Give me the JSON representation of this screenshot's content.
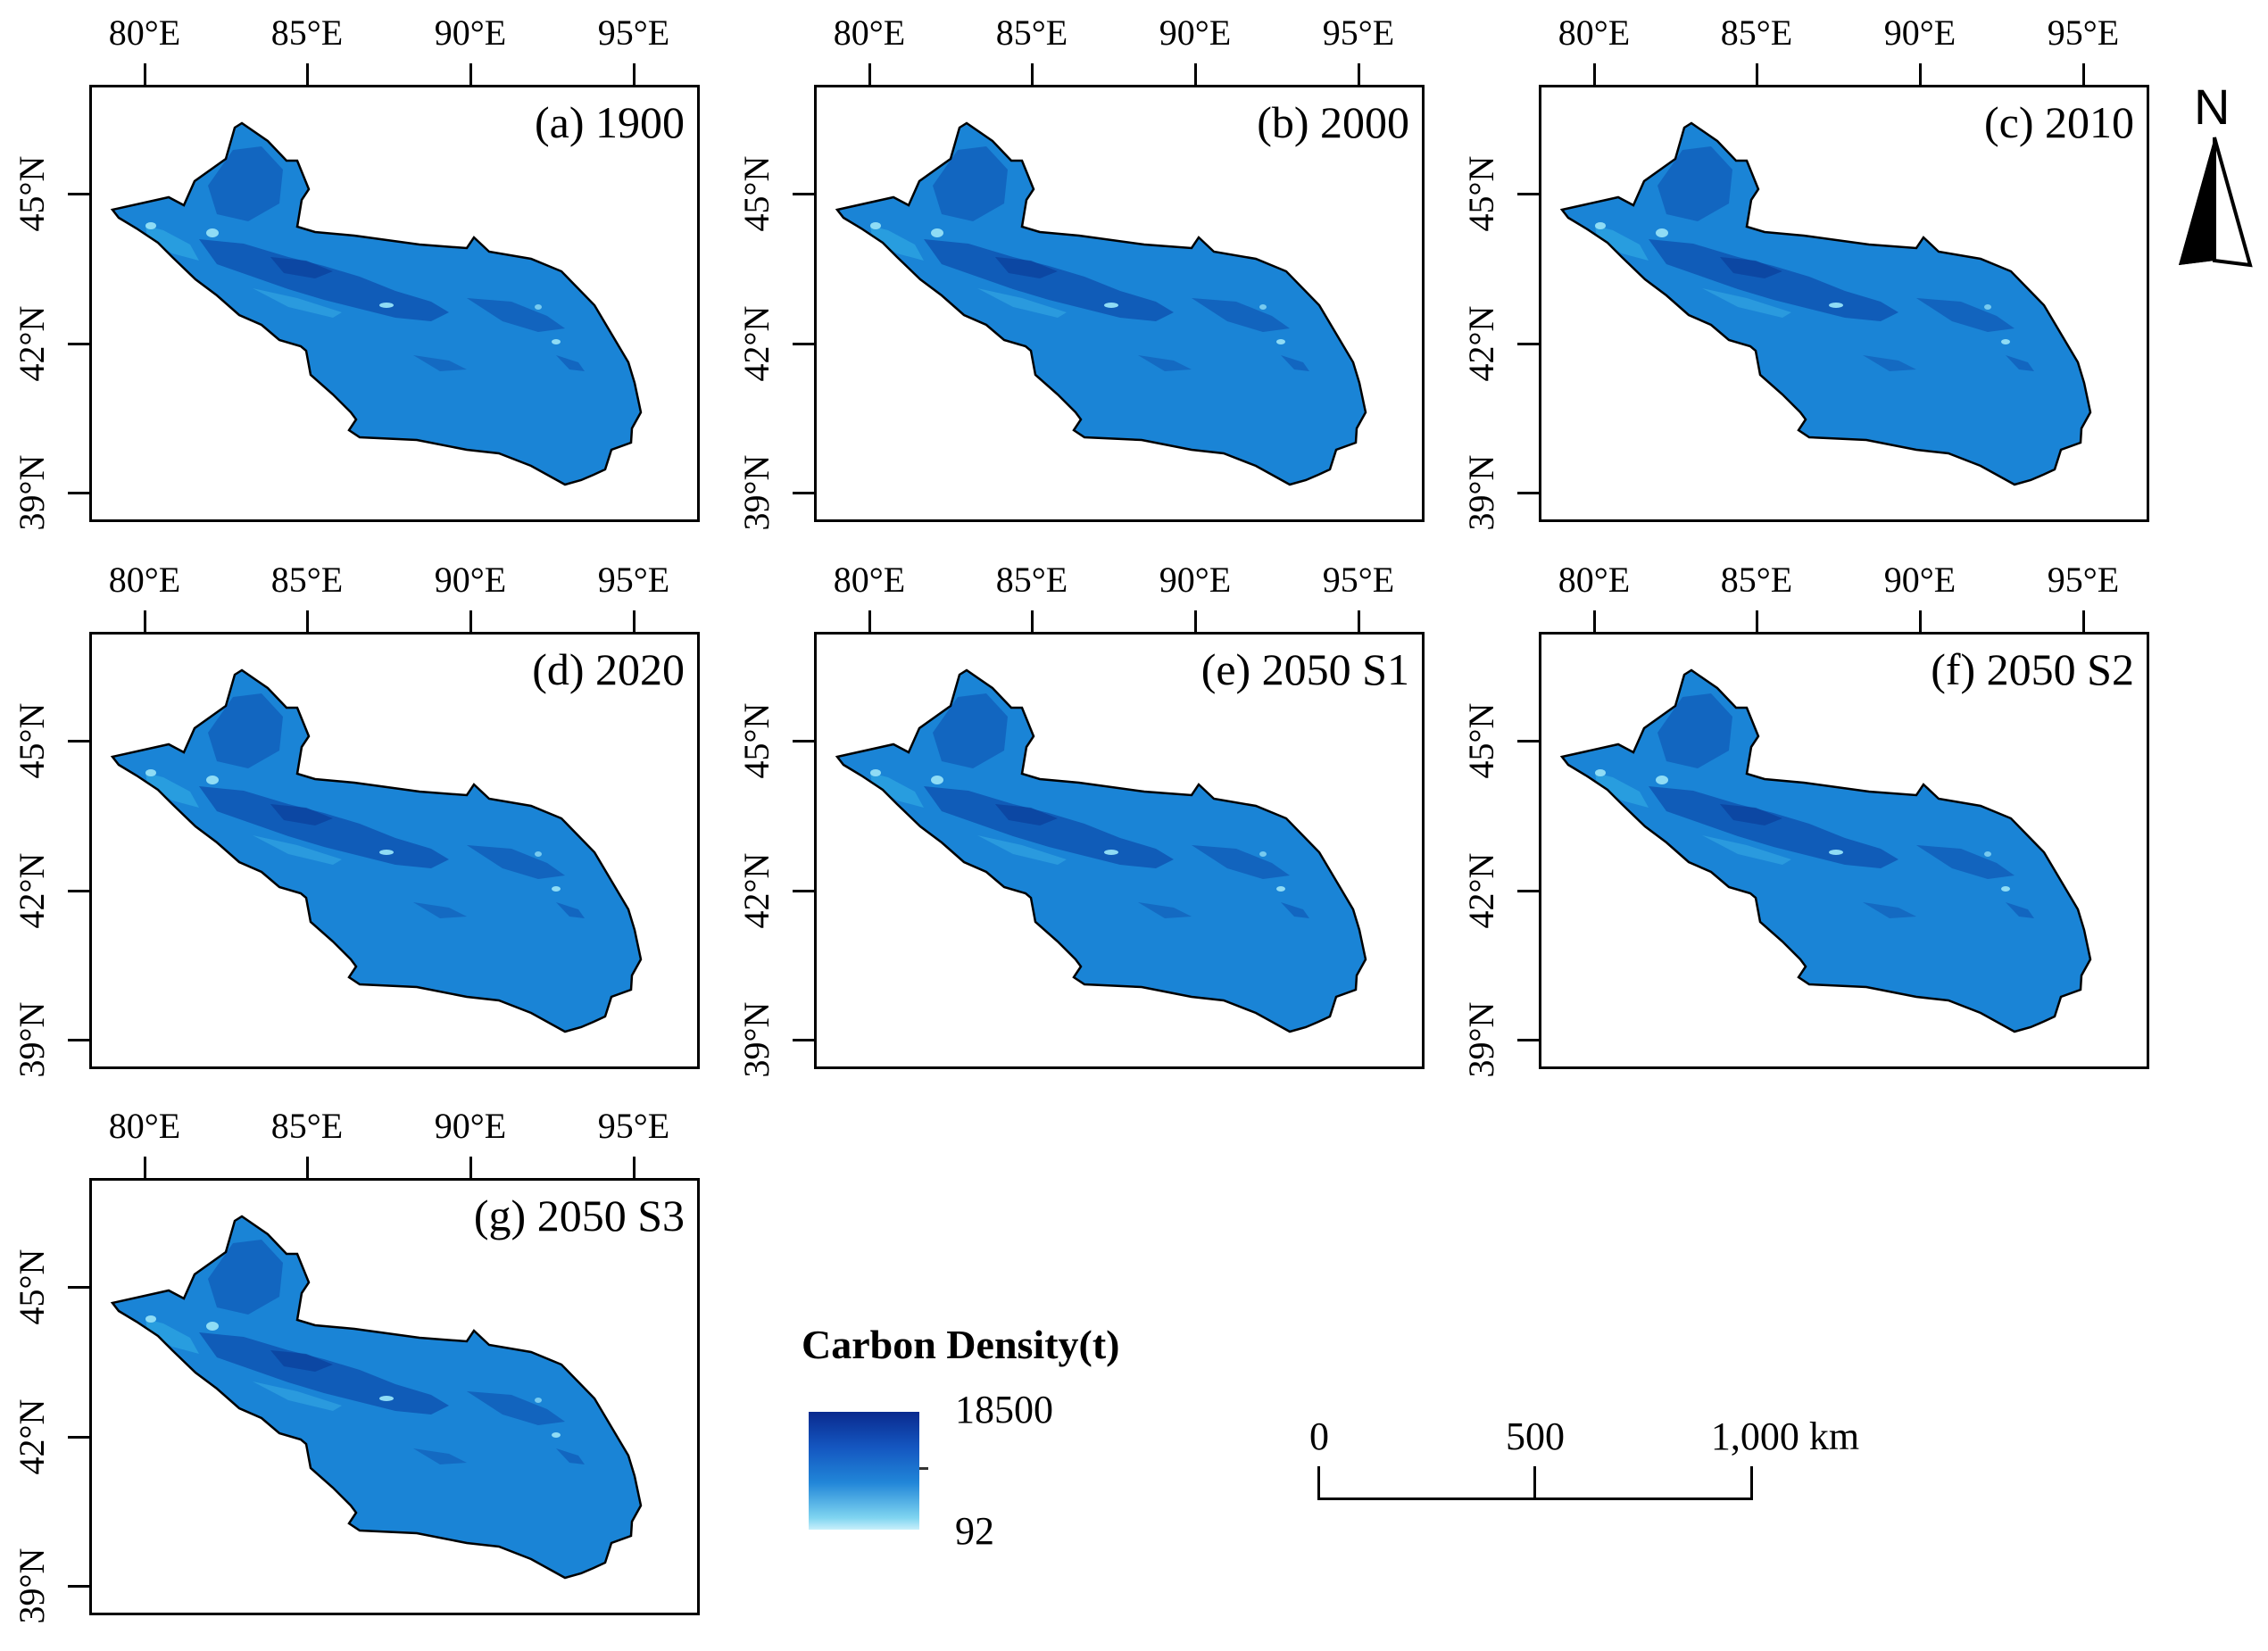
{
  "panels": [
    {
      "label": "(a) 1900"
    },
    {
      "label": "(b) 2000"
    },
    {
      "label": "(c) 2010"
    },
    {
      "label": "(d) 2020"
    },
    {
      "label": "(e) 2050 S1"
    },
    {
      "label": "(f) 2050 S2"
    },
    {
      "label": "(g) 2050 S3"
    }
  ],
  "axes": {
    "lon_labels": [
      "80°E",
      "85°E",
      "90°E",
      "95°E"
    ],
    "lat_labels": [
      "45°N",
      "42°N",
      "39°N"
    ]
  },
  "north_arrow": {
    "letter": "N",
    "icon": "north-arrow-icon"
  },
  "legend": {
    "title": "Carbon Density(t)",
    "max": "18500",
    "min": "92",
    "colors": [
      "#0a2a8e",
      "#1456c0",
      "#2186d8",
      "#7fd4f0",
      "#c8f0fb"
    ]
  },
  "scale_bar": {
    "labels": [
      "0",
      "500",
      "1,000 km"
    ]
  },
  "colors": {
    "region_fill": "#1a84d6",
    "region_dark": "#0d4fae",
    "region_light": "#8fdcf5",
    "frame": "#000000"
  }
}
